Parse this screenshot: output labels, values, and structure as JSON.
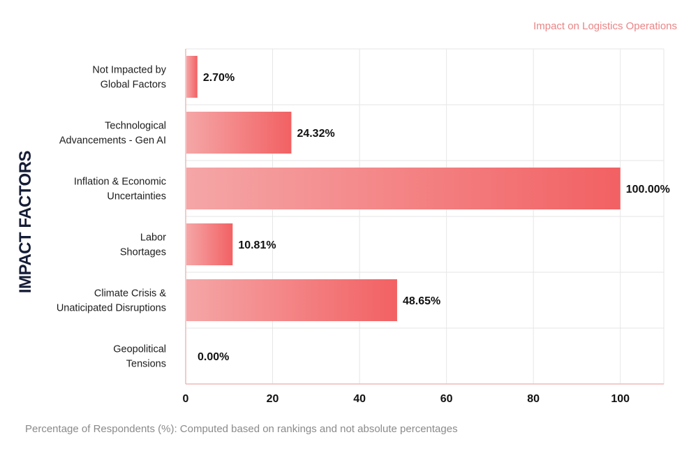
{
  "chart_data": {
    "type": "bar",
    "orientation": "horizontal",
    "legend": "Impact on Logistics Operations",
    "legend_position": "top-right",
    "ylabel": "IMPACT FACTORS",
    "xlabel": "Percentage of Respondents (%): Computed based on rankings and not absolute percentages",
    "xlim": [
      0,
      110
    ],
    "xticks": [
      0,
      20,
      40,
      60,
      80,
      100
    ],
    "grid": true,
    "categories": [
      [
        "Not Impacted by",
        "Global Factors"
      ],
      [
        "Technological",
        "Advancements - Gen AI"
      ],
      [
        "Inflation & Economic",
        "Uncertainties"
      ],
      [
        "Labor",
        "Shortages"
      ],
      [
        "Climate Crisis &",
        "Unaticipated Disruptions"
      ],
      [
        "Geopolitical",
        "Tensions"
      ]
    ],
    "values": [
      2.7,
      24.32,
      100.0,
      10.81,
      48.65,
      0.0
    ],
    "value_labels": [
      "2.70%",
      "24.32%",
      "100.00%",
      "10.81%",
      "48.65%",
      "0.00%"
    ],
    "colors": {
      "bar_start": "#f5a6a7",
      "bar_end": "#f26163",
      "legend_text": "#e98586",
      "axis_title": "#151c36",
      "grid": "#e6e6e6"
    }
  }
}
